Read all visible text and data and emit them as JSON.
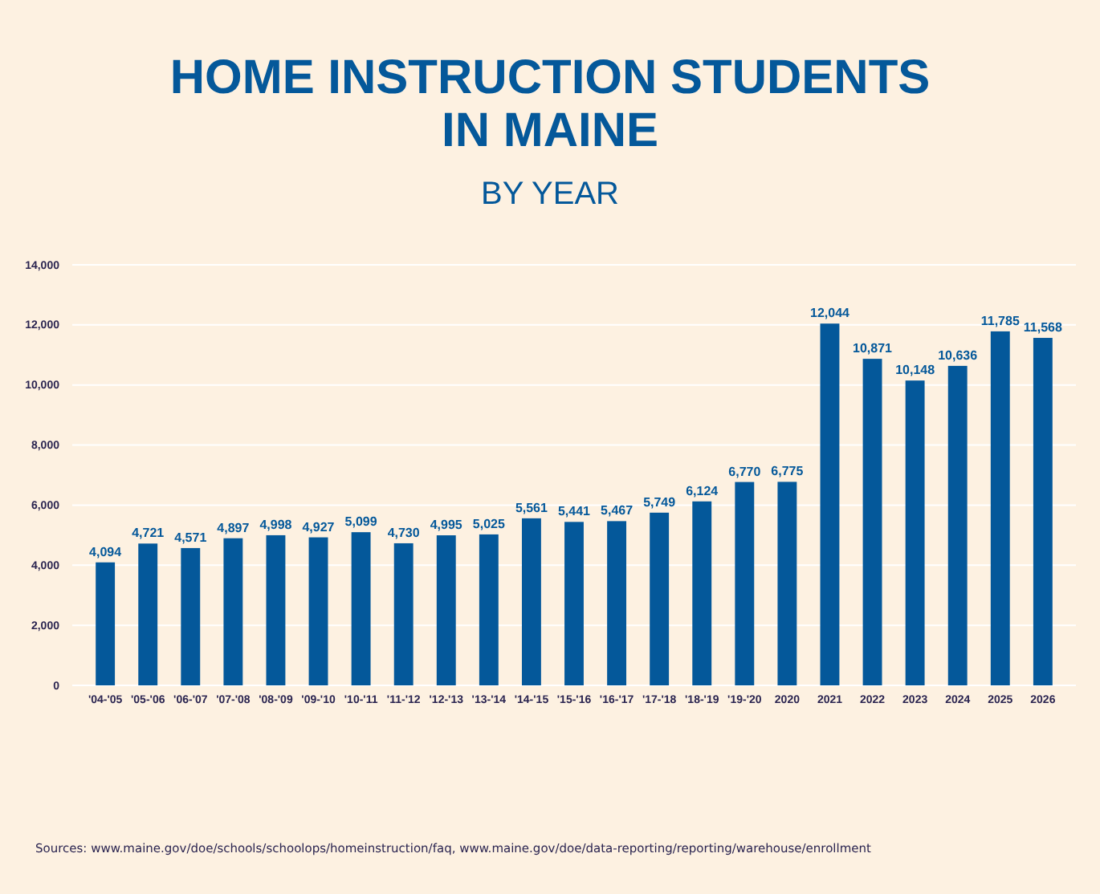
{
  "chart_data": {
    "type": "bar",
    "title": "HOME INSTRUCTION STUDENTS IN MAINE",
    "subtitle": "BY YEAR",
    "categories": [
      "'04-'05",
      "'05-'06",
      "'06-'07",
      "'07-'08",
      "'08-'09",
      "'09-'10",
      "'10-'11",
      "'11-'12",
      "'12-'13",
      "'13-'14",
      "'14-'15",
      "'15-'16",
      "'16-'17",
      "'17-'18",
      "'18-'19",
      "'19-'20",
      "2020",
      "2021",
      "2022",
      "2023",
      "2024",
      "2025",
      "2026"
    ],
    "values": [
      4094,
      4721,
      4571,
      4897,
      4998,
      4927,
      5099,
      4730,
      4995,
      5025,
      5561,
      5441,
      5467,
      5749,
      6124,
      6770,
      6775,
      12044,
      10871,
      10148,
      10636,
      11785,
      11568
    ],
    "value_labels": [
      "4,094",
      "4,721",
      "4,571",
      "4,897",
      "4,998",
      "4,927",
      "5,099",
      "4,730",
      "4,995",
      "5,025",
      "5,561",
      "5,441",
      "5,467",
      "5,749",
      "6,124",
      "6,770",
      "6,775",
      "12,044",
      "10,871",
      "10,148",
      "10,636",
      "11,785",
      "11,568"
    ],
    "color": "#04589a",
    "grid": "y",
    "ylim": [
      0,
      14000
    ],
    "yticks": [
      0,
      {
        "value": 2000,
        "label": "2,000"
      },
      {
        "value": 4000,
        "label": "4,000"
      },
      {
        "value": 6000,
        "label": "6,000"
      },
      {
        "value": 8000,
        "label": "8,000"
      },
      {
        "value": 10000,
        "label": "10,000"
      },
      {
        "value": 12000,
        "label": "12,000"
      },
      {
        "value": 14000,
        "label": "14,000"
      }
    ],
    "annotations": [
      "Sources: www.maine.gov/doe/schools/schoolops/homeinstruction/faq, www.maine.gov/doe/data-reporting/reporting/warehouse/enrollment"
    ]
  }
}
